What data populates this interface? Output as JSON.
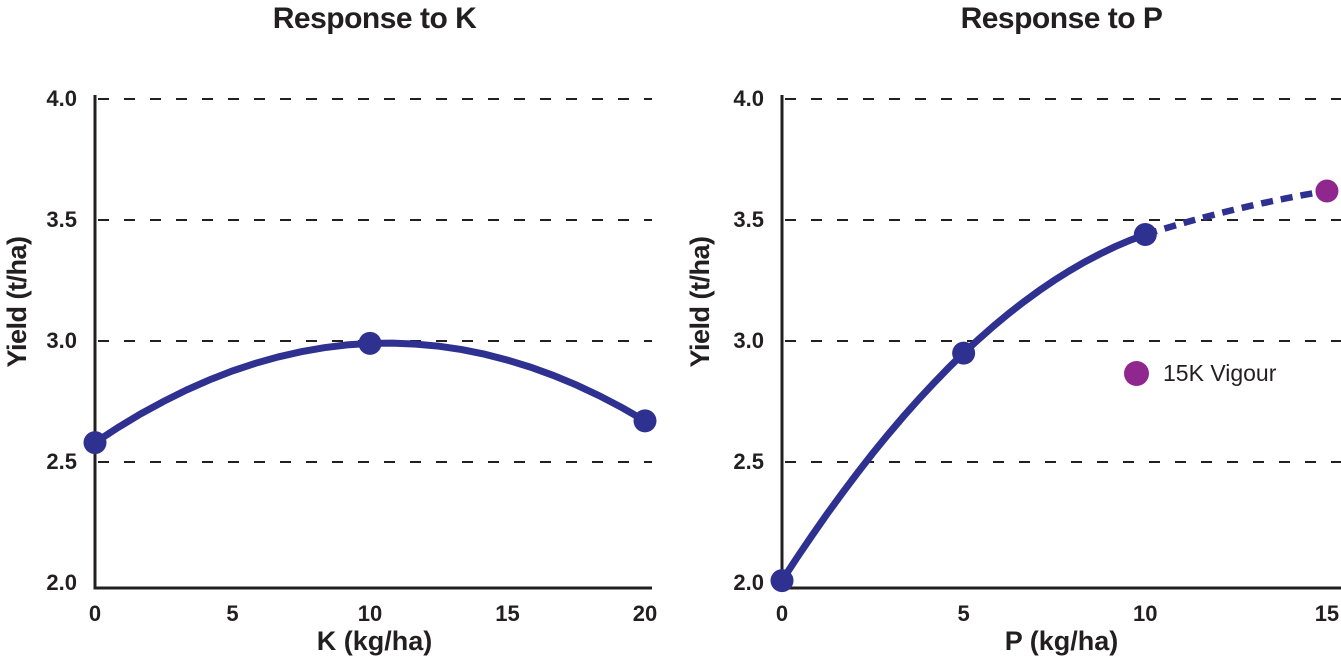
{
  "figure": {
    "background": "#ffffff",
    "text_color": "#231f20",
    "grid_color": "#231f20"
  },
  "chart_data": [
    {
      "type": "line",
      "title": "Response to K",
      "xlabel": "K (kg/ha)",
      "ylabel": "Yield (t/ha)",
      "xlim": [
        0,
        20
      ],
      "ylim": [
        2.0,
        4.0
      ],
      "xticks": [
        0,
        5,
        10,
        15,
        20
      ],
      "ytick_labels": [
        "4.0",
        "3.5",
        "3.0",
        "2.5",
        "2.0"
      ],
      "grid": "horizontal-dashed",
      "series": [
        {
          "name": "yield-response-to-K",
          "style": "smooth-line-with-markers",
          "color": "#2e3190",
          "points": [
            [
              0,
              2.58
            ],
            [
              10,
              2.99
            ],
            [
              20,
              2.67
            ]
          ]
        }
      ]
    },
    {
      "type": "line",
      "title": "Response to P",
      "xlabel": "P (kg/ha)",
      "ylabel": "Yield (t/ha)",
      "xlim": [
        0,
        15
      ],
      "ylim": [
        2.0,
        4.0
      ],
      "xticks": [
        0,
        5,
        10,
        15
      ],
      "ytick_labels": [
        "4.0",
        "3.5",
        "3.0",
        "2.5",
        "2.0"
      ],
      "grid": "horizontal-dashed",
      "series": [
        {
          "name": "yield-response-to-P",
          "style": "smooth-line-with-markers",
          "color": "#2e3190",
          "points": [
            [
              0,
              2.01
            ],
            [
              5,
              2.95
            ],
            [
              10,
              3.44
            ]
          ]
        },
        {
          "name": "projection-to-15K",
          "style": "dashed-line",
          "color": "#2e3190",
          "points": [
            [
              10,
              3.44
            ],
            [
              15,
              3.62
            ]
          ]
        },
        {
          "name": "15K-vigour-point",
          "style": "marker-only",
          "color": "#90278e",
          "points": [
            [
              15,
              3.62
            ]
          ]
        }
      ],
      "legend": {
        "label": "15K Vigour",
        "marker_color": "#90278e"
      }
    }
  ]
}
